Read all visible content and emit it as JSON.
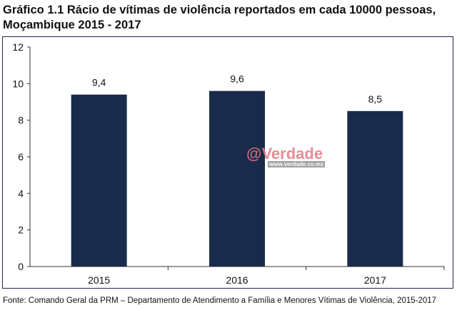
{
  "chart_data": {
    "type": "bar",
    "title": "Gráfico 1.1 Rácio de vítimas de violência reportados em cada 10000 pessoas, Moçambique 2015 - 2017",
    "categories": [
      "2015",
      "2016",
      "2017"
    ],
    "values": [
      9.4,
      9.6,
      8.5
    ],
    "data_labels": [
      "9,4",
      "9,6",
      "8,5"
    ],
    "ylim": [
      0,
      12
    ],
    "yticks": [
      "0",
      "2",
      "4",
      "6",
      "8",
      "10",
      "12"
    ],
    "bar_color": "#1a2a4a",
    "grid": false,
    "source": "Fonte: Comando Geral da PRM – Departamento de Atendimento a Família e Menores Vítimas de Violência, 2015-2017"
  },
  "watermark": {
    "logo": "@Verdade",
    "url": "www.verdade.co.mz"
  }
}
